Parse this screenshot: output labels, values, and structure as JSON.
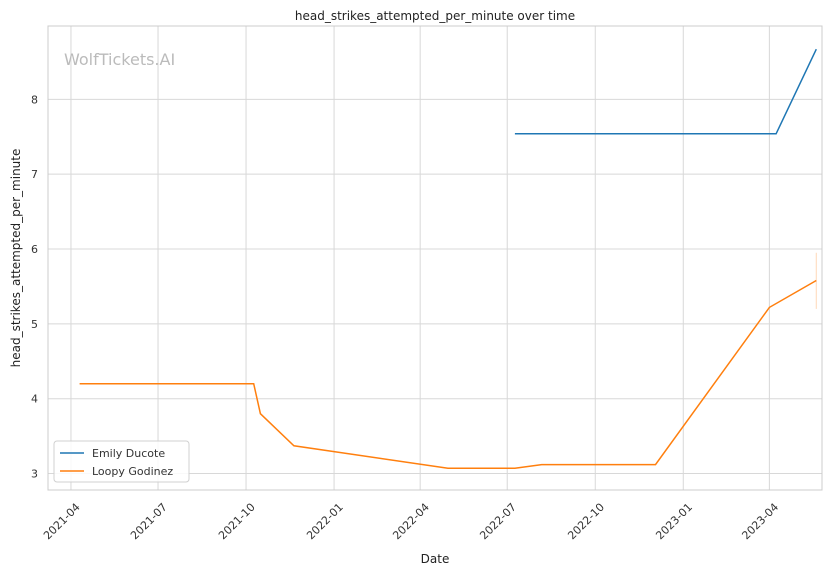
{
  "chart_data": {
    "type": "line",
    "title": "head_strikes_attempted_per_minute over time",
    "xlabel": "Date",
    "ylabel": "head_strikes_attempted_per_minute",
    "watermark": "WolfTickets.AI",
    "xlim": [
      "2021-03-08",
      "2023-05-26"
    ],
    "ylim": [
      2.78,
      8.98
    ],
    "x_ticks": [
      "2021-04",
      "2021-07",
      "2021-10",
      "2022-01",
      "2022-04",
      "2022-07",
      "2022-10",
      "2023-01",
      "2023-04"
    ],
    "y_ticks": [
      3,
      4,
      5,
      6,
      7,
      8
    ],
    "grid": true,
    "legend_position": "lower-left",
    "series": [
      {
        "name": "Emily Ducote",
        "color": "#1f77b4",
        "points": [
          {
            "x": "2022-07-09",
            "y": 7.54
          },
          {
            "x": "2023-04-08",
            "y": 7.54
          },
          {
            "x": "2023-05-20",
            "y": 8.67
          }
        ]
      },
      {
        "name": "Loopy Godinez",
        "color": "#ff7f0e",
        "points": [
          {
            "x": "2021-04-10",
            "y": 4.2
          },
          {
            "x": "2021-10-09",
            "y": 4.2
          },
          {
            "x": "2021-10-16",
            "y": 3.8
          },
          {
            "x": "2021-11-20",
            "y": 3.37
          },
          {
            "x": "2022-04-30",
            "y": 3.07
          },
          {
            "x": "2022-07-09",
            "y": 3.07
          },
          {
            "x": "2022-08-06",
            "y": 3.12
          },
          {
            "x": "2022-12-03",
            "y": 3.12
          },
          {
            "x": "2023-04-01",
            "y": 5.22
          },
          {
            "x": "2023-05-20",
            "y": 5.58
          }
        ],
        "error_band": {
          "x": "2023-05-20",
          "low": 5.2,
          "high": 5.95
        }
      }
    ]
  }
}
